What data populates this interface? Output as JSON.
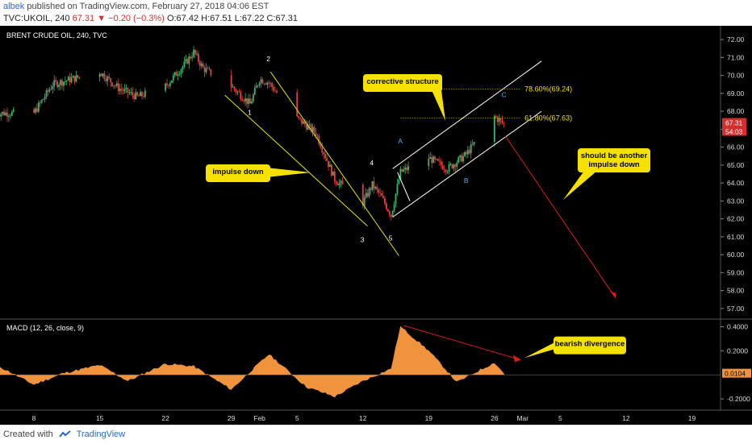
{
  "header": {
    "author": "albek",
    "published_text": "published on TradingView.com, February 27, 2018 04:06 EST",
    "symbol": "TVC:UKOIL, 240",
    "change": "−0.20 (−0.3%)",
    "last": "67.31",
    "open": "O:67.42",
    "high": "H:67.51",
    "low": "L:67.22",
    "close": "C:67.31"
  },
  "footer": {
    "created_with": "Created with",
    "brand": "TradingView"
  },
  "colors": {
    "background": "#000000",
    "bull_candle": "#3cb371",
    "bear_candle": "#e84040",
    "channel_line": "#e6e600",
    "corrective_channel": "#ffffff",
    "callout": "#f5e100",
    "arrow": "#d81b1b",
    "macd_fill": "#f0933d",
    "wave_label_impulse": "#ffffff",
    "wave_label_abc": "#5ab4e6",
    "price_tag": "#d32f2f"
  },
  "chart_data": [
    {
      "type": "candlestick",
      "title": "BRENT CRUDE OIL, 240, TVC",
      "ylim": [
        56.5,
        72.5
      ],
      "y_ticks": [
        "72.00",
        "71.00",
        "70.00",
        "69.00",
        "68.00",
        "67.00",
        "66.00",
        "65.00",
        "64.00",
        "63.00",
        "62.00",
        "61.00",
        "60.00",
        "59.00",
        "58.00",
        "57.00"
      ],
      "x_ticks": [
        "8",
        "15",
        "22",
        "29",
        "Feb",
        "5",
        "12",
        "19",
        "26",
        "Mar",
        "5",
        "12",
        "19"
      ],
      "price_tags": {
        "last": "67.31",
        "countdown": "54:03"
      },
      "approx_path": {
        "dates": [
          "Jan 04",
          "Jan 08",
          "Jan 10",
          "Jan 12",
          "Jan 15",
          "Jan 17",
          "Jan 19",
          "Jan 22",
          "Jan 24",
          "Jan 25",
          "Jan 26",
          "Jan 29",
          "Jan 31",
          "Feb 01",
          "Feb 02",
          "Feb 05",
          "Feb 07",
          "Feb 09",
          "Feb 12",
          "Feb 13",
          "Feb 14",
          "Feb 15",
          "Feb 16",
          "Feb 19",
          "Feb 21",
          "Feb 23",
          "Feb 26",
          "Feb 27"
        ],
        "close": [
          67.9,
          67.9,
          69.5,
          69.8,
          70.2,
          69.3,
          68.8,
          69.4,
          70.6,
          71.3,
          70.4,
          69.4,
          68.4,
          69.8,
          69.6,
          67.6,
          66.8,
          64.2,
          62.9,
          63.9,
          63.2,
          62.2,
          64.6,
          65.4,
          64.8,
          65.6,
          67.7,
          67.31
        ]
      },
      "wave_labels": [
        "1",
        "2",
        "3",
        "4",
        "5",
        "A",
        "B",
        "C"
      ],
      "fib_levels": [
        {
          "label": "78.60%(69.24)",
          "value": 69.24
        },
        {
          "label": "61.80%(67.63)",
          "value": 67.63
        }
      ],
      "annotations": [
        "impulse down",
        "corrective structure",
        "should be another impulse down"
      ]
    },
    {
      "type": "area",
      "title": "MACD (12, 26, close, 9)",
      "ylim": [
        -0.28,
        0.45
      ],
      "y_ticks": [
        "0.4000",
        "0.2000",
        "-0.2000"
      ],
      "last_value": "0.0104",
      "approx_path": {
        "dates": [
          "Jan 04",
          "Jan 08",
          "Jan 11",
          "Jan 15",
          "Jan 18",
          "Jan 22",
          "Jan 25",
          "Jan 29",
          "Feb 02",
          "Feb 06",
          "Feb 09",
          "Feb 12",
          "Feb 15",
          "Feb 16",
          "Feb 19",
          "Feb 22",
          "Feb 26",
          "Feb 27"
        ],
        "values": [
          0.08,
          -0.08,
          0.01,
          0.08,
          -0.05,
          0.09,
          0.07,
          -0.12,
          0.17,
          -0.1,
          -0.18,
          -0.05,
          0.05,
          0.4,
          0.2,
          -0.06,
          0.1,
          0.0104
        ]
      },
      "annotations": [
        "bearish divergence"
      ]
    }
  ]
}
